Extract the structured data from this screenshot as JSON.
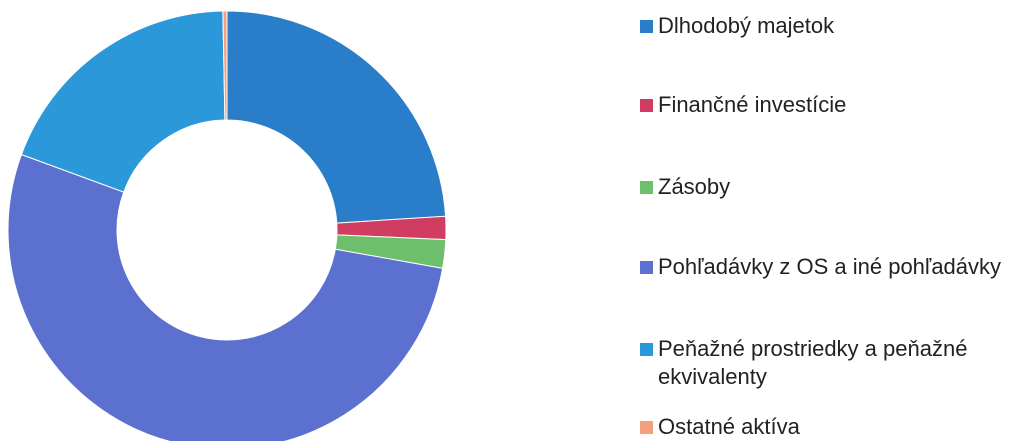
{
  "chart_data": {
    "type": "donut",
    "categories": [
      "Dlhodobý majetok",
      "Finančné investície",
      "Zásoby",
      "Pohľadávky z OS a iné pohľadávky",
      "Peňažné prostriedky a peňažné ekvivalenty",
      "Ostatné aktíva"
    ],
    "values": [
      24,
      1.7,
      2.1,
      52.8,
      19.1,
      0.3
    ],
    "colors": [
      "#2a7dc8",
      "#d13d60",
      "#6dbf6b",
      "#5c70cf",
      "#2b98d9",
      "#f4a07f"
    ]
  }
}
